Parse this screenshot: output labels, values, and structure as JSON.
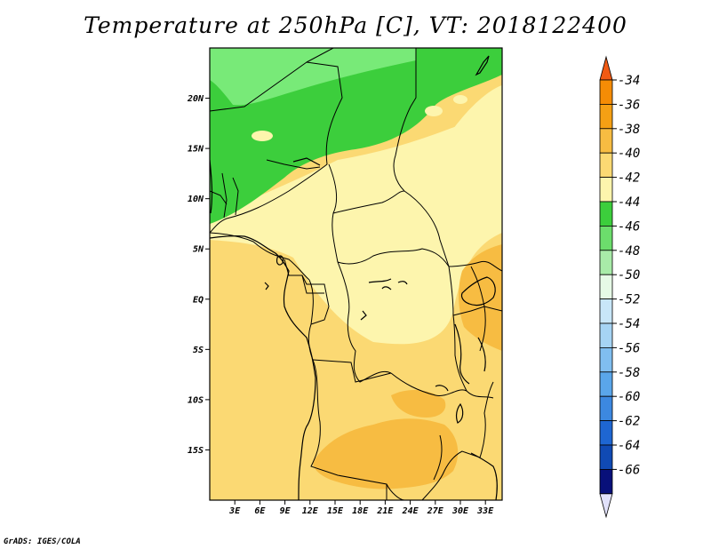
{
  "map": {
    "title": "Temperature at 250hPa [C], VT: 2018122400",
    "footer": "GrADS: IGES/COLA",
    "lat_labels": [
      "20N",
      "15N",
      "10N",
      "5N",
      "EQ",
      "5S",
      "10S",
      "15S"
    ],
    "lat_values": [
      20,
      15,
      10,
      5,
      0,
      -5,
      -10,
      -15
    ],
    "lon_labels": [
      "3E",
      "6E",
      "9E",
      "12E",
      "15E",
      "18E",
      "21E",
      "24E",
      "27E",
      "30E",
      "33E"
    ],
    "lon_values": [
      3,
      6,
      9,
      12,
      15,
      18,
      21,
      24,
      27,
      30,
      33
    ],
    "lon_range": [
      0,
      35
    ],
    "lat_range": [
      -20,
      25
    ]
  },
  "colorbar": {
    "labels": [
      "-34",
      "-36",
      "-38",
      "-40",
      "-42",
      "-44",
      "-46",
      "-48",
      "-50",
      "-52",
      "-54",
      "-56",
      "-58",
      "-60",
      "-62",
      "-64",
      "-66"
    ],
    "colors": [
      "#f05a14",
      "#f58c05",
      "#f5a014",
      "#f7bc42",
      "#fbd973",
      "#fdf5ad",
      "#3cce3c",
      "#6cdd6c",
      "#a8eba8",
      "#e6fae6",
      "#c8e6f8",
      "#a6d4f4",
      "#80bef0",
      "#5aa6ea",
      "#3c88e0",
      "#1e66d2",
      "#104ab4",
      "#08107a",
      "#e1e1fb"
    ]
  },
  "colors": {
    "saharan_green": "#3cce3c",
    "light_green": "#78ea78",
    "pale_yellow": "#fdf5ad",
    "yellow": "#fbd973",
    "light_orange": "#f7bc42",
    "orange": "#f5a014"
  }
}
